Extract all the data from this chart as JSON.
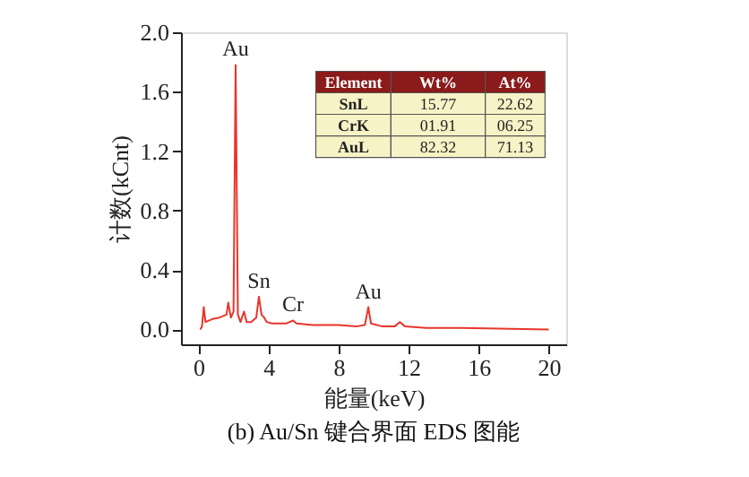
{
  "chart_data": {
    "type": "line",
    "title": "(b) Au/Sn 键合界面 EDS 图能",
    "xlabel": "能量(keV)",
    "ylabel": "计数(kCnt)",
    "x": [
      0.1,
      0.2,
      0.3,
      0.4,
      0.8,
      1.2,
      1.6,
      1.7,
      1.85,
      2.0,
      2.12,
      2.25,
      2.4,
      2.6,
      2.75,
      3.0,
      3.3,
      3.45,
      3.6,
      3.75,
      3.9,
      4.2,
      5.0,
      5.4,
      5.6,
      6.5,
      8.0,
      9.0,
      9.5,
      9.7,
      9.85,
      10.5,
      11.2,
      11.5,
      11.8,
      13.0,
      15.0,
      20.0
    ],
    "series": [
      {
        "color": "#e8352c",
        "values": [
          0.0,
          0.02,
          0.15,
          0.05,
          0.07,
          0.08,
          0.1,
          0.18,
          0.08,
          0.12,
          1.78,
          0.1,
          0.05,
          0.12,
          0.05,
          0.05,
          0.08,
          0.22,
          0.1,
          0.08,
          0.05,
          0.04,
          0.04,
          0.06,
          0.04,
          0.03,
          0.03,
          0.02,
          0.03,
          0.15,
          0.04,
          0.02,
          0.02,
          0.05,
          0.02,
          0.01,
          0.01,
          0.0
        ]
      }
    ],
    "xlim": [
      -1,
      21
    ],
    "xticks": [
      0,
      4,
      8,
      12,
      16,
      20
    ],
    "ylim": [
      -0.1,
      2.0
    ],
    "yticks": [
      {
        "value": 0,
        "label": "0.0"
      },
      {
        "value": 0.4,
        "label": "0.4"
      },
      {
        "value": 0.8,
        "label": "0.8"
      },
      {
        "value": 1.2,
        "label": "1.2"
      },
      {
        "value": 1.6,
        "label": "1.6"
      },
      {
        "value": 2.0,
        "label": "2.0"
      }
    ],
    "grid": false,
    "legend": false,
    "marker": "none",
    "line_style": "solid",
    "annotations": [
      {
        "text": "Au",
        "x": 2.12,
        "y": 1.78
      },
      {
        "text": "Sn",
        "x": 3.45,
        "y": 0.22
      },
      {
        "text": "Cr",
        "x": 5.4,
        "y": 0.06
      },
      {
        "text": "Au",
        "x": 9.7,
        "y": 0.15
      },
      "Element",
      "Wt%",
      "At%",
      "SnL",
      "15.77",
      "22.62",
      "CrK",
      "01.91",
      "06.25",
      "AuL",
      "82.32",
      "71.13"
    ]
  }
}
